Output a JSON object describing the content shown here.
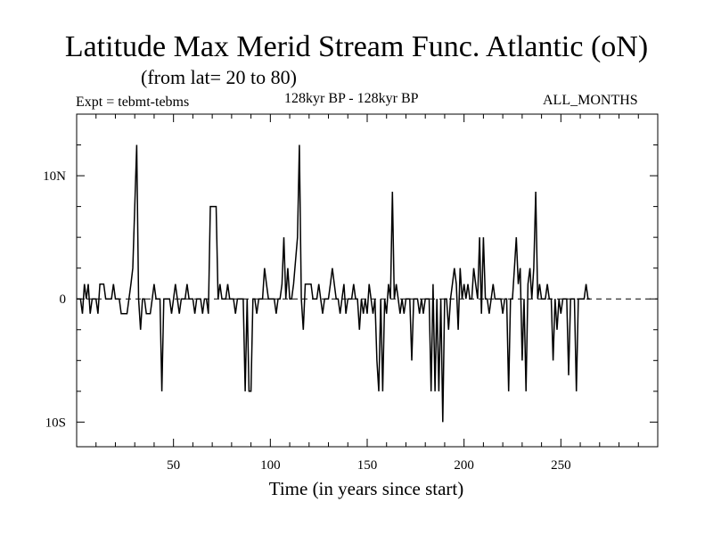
{
  "title": "Latitude Max Merid Stream Func. Atlantic (oN)",
  "subtitle": "(from lat= 20 to 80)",
  "experiment_label": "Expt = tebmt-tebms",
  "period_label": "128kyr BP - 128kyr BP",
  "months_label": "ALL_MONTHS",
  "chart_data": {
    "type": "line",
    "title": "Latitude Max Merid Stream Func. Atlantic (oN)",
    "subtitle": "(from lat= 20 to 80)",
    "xlabel": "Time (in years since start)",
    "ylabel": "",
    "xlim": [
      0,
      300
    ],
    "ylim": [
      -12,
      15
    ],
    "x_ticks": [
      50,
      100,
      150,
      200,
      250
    ],
    "x_tick_labels": [
      "50",
      "100",
      "150",
      "200",
      "250"
    ],
    "y_ticks": [
      10,
      0,
      -10
    ],
    "y_tick_labels": [
      "10N",
      "0",
      "10S"
    ],
    "zero_line": "dashed",
    "series": [
      {
        "name": "tebmt-tebms",
        "color": "#000000",
        "points": [
          [
            0,
            0
          ],
          [
            2,
            0
          ],
          [
            3,
            -1.2
          ],
          [
            4,
            1.2
          ],
          [
            5,
            0
          ],
          [
            6,
            1.2
          ],
          [
            7,
            -1.2
          ],
          [
            8,
            0
          ],
          [
            10,
            0
          ],
          [
            11,
            -1.2
          ],
          [
            12,
            1.2
          ],
          [
            14,
            1.2
          ],
          [
            15,
            0
          ],
          [
            18,
            0
          ],
          [
            19,
            1.2
          ],
          [
            20,
            0
          ],
          [
            22,
            0
          ],
          [
            23,
            -1.2
          ],
          [
            26,
            -1.2
          ],
          [
            27,
            0
          ],
          [
            28,
            1.2
          ],
          [
            29,
            2.5
          ],
          [
            30,
            7.5
          ],
          [
            31,
            12.5
          ],
          [
            32,
            0
          ],
          [
            33,
            -2.5
          ],
          [
            34,
            0
          ],
          [
            35,
            0
          ],
          [
            36,
            -1.2
          ],
          [
            38,
            -1.2
          ],
          [
            39,
            0
          ],
          [
            40,
            1.2
          ],
          [
            41,
            0
          ],
          [
            43,
            0
          ],
          [
            44,
            -7.5
          ],
          [
            45,
            0
          ],
          [
            48,
            0
          ],
          [
            49,
            -1.2
          ],
          [
            50,
            0
          ],
          [
            51,
            1.2
          ],
          [
            52,
            0
          ],
          [
            53,
            -1.2
          ],
          [
            54,
            0
          ],
          [
            56,
            0
          ],
          [
            57,
            1.2
          ],
          [
            58,
            0
          ],
          [
            60,
            0
          ],
          [
            61,
            -1.2
          ],
          [
            62,
            0
          ],
          [
            64,
            0
          ],
          [
            65,
            -1.2
          ],
          [
            66,
            0
          ],
          [
            67,
            0
          ],
          [
            68,
            -1.2
          ],
          [
            69,
            7.5
          ],
          [
            72,
            7.5
          ],
          [
            73,
            0
          ],
          [
            74,
            1.2
          ],
          [
            75,
            0
          ],
          [
            77,
            0
          ],
          [
            78,
            1.2
          ],
          [
            79,
            0
          ],
          [
            81,
            0
          ],
          [
            82,
            -1.2
          ],
          [
            83,
            0
          ],
          [
            86,
            0
          ],
          [
            87,
            -7.5
          ],
          [
            88,
            0
          ],
          [
            89,
            -7.5
          ],
          [
            90,
            -7.5
          ],
          [
            91,
            0
          ],
          [
            92,
            0
          ],
          [
            93,
            -1.2
          ],
          [
            94,
            0
          ],
          [
            96,
            0
          ],
          [
            97,
            2.5
          ],
          [
            98,
            1.2
          ],
          [
            99,
            0
          ],
          [
            102,
            0
          ],
          [
            103,
            -1.2
          ],
          [
            104,
            0
          ],
          [
            105,
            0
          ],
          [
            106,
            1.2
          ],
          [
            107,
            5
          ],
          [
            108,
            0
          ],
          [
            109,
            2.5
          ],
          [
            110,
            0
          ],
          [
            111,
            0
          ],
          [
            112,
            1.2
          ],
          [
            114,
            5
          ],
          [
            115,
            12.5
          ],
          [
            116,
            0
          ],
          [
            117,
            -2.5
          ],
          [
            118,
            1.2
          ],
          [
            121,
            1.2
          ],
          [
            122,
            0
          ],
          [
            124,
            0
          ],
          [
            125,
            1.2
          ],
          [
            126,
            0
          ],
          [
            127,
            -1.2
          ],
          [
            128,
            0
          ],
          [
            130,
            0
          ],
          [
            131,
            1.2
          ],
          [
            132,
            2.5
          ],
          [
            133,
            1.2
          ],
          [
            134,
            0
          ],
          [
            135,
            0
          ],
          [
            136,
            -1.2
          ],
          [
            137,
            0
          ],
          [
            138,
            1.2
          ],
          [
            139,
            -1.2
          ],
          [
            140,
            0
          ],
          [
            142,
            0
          ],
          [
            143,
            1.2
          ],
          [
            144,
            0
          ],
          [
            145,
            0
          ],
          [
            146,
            -2.5
          ],
          [
            147,
            0
          ],
          [
            148,
            -1.2
          ],
          [
            149,
            0
          ],
          [
            150,
            -1.2
          ],
          [
            151,
            1.2
          ],
          [
            152,
            0
          ],
          [
            153,
            -1.2
          ],
          [
            154,
            0
          ],
          [
            155,
            -5
          ],
          [
            156,
            -7.5
          ],
          [
            157,
            0
          ],
          [
            158,
            -7.5
          ],
          [
            159,
            0
          ],
          [
            160,
            -1.2
          ],
          [
            161,
            1.2
          ],
          [
            162,
            0
          ],
          [
            163,
            8.7
          ],
          [
            164,
            0
          ],
          [
            165,
            1.2
          ],
          [
            166,
            0
          ],
          [
            167,
            -1.2
          ],
          [
            168,
            0
          ],
          [
            169,
            -1.2
          ],
          [
            170,
            0
          ],
          [
            172,
            0
          ],
          [
            173,
            -5
          ],
          [
            174,
            0
          ],
          [
            176,
            0
          ],
          [
            177,
            -1.2
          ],
          [
            178,
            0
          ],
          [
            179,
            -1.2
          ],
          [
            180,
            0
          ],
          [
            182,
            0
          ],
          [
            183,
            -7.5
          ],
          [
            184,
            1.2
          ],
          [
            185,
            -7.5
          ],
          [
            186,
            0
          ],
          [
            187,
            -7.5
          ],
          [
            188,
            0
          ],
          [
            189,
            -10
          ],
          [
            190,
            0
          ],
          [
            191,
            0
          ],
          [
            192,
            -2.5
          ],
          [
            193,
            0
          ],
          [
            194,
            1.2
          ],
          [
            195,
            2.5
          ],
          [
            196,
            1.2
          ],
          [
            197,
            -2.5
          ],
          [
            198,
            2.5
          ],
          [
            199,
            0
          ],
          [
            200,
            1.2
          ],
          [
            201,
            0
          ],
          [
            202,
            1.2
          ],
          [
            203,
            0
          ],
          [
            204,
            0
          ],
          [
            205,
            2.5
          ],
          [
            206,
            1.2
          ],
          [
            207,
            0
          ],
          [
            208,
            5
          ],
          [
            209,
            -1.2
          ],
          [
            210,
            5
          ],
          [
            211,
            0
          ],
          [
            212,
            0
          ],
          [
            213,
            -1.2
          ],
          [
            214,
            0
          ],
          [
            215,
            1.2
          ],
          [
            216,
            0
          ],
          [
            219,
            0
          ],
          [
            220,
            -1.2
          ],
          [
            221,
            0
          ],
          [
            222,
            0
          ],
          [
            223,
            -7.5
          ],
          [
            224,
            0
          ],
          [
            225,
            0
          ],
          [
            226,
            2.5
          ],
          [
            227,
            5
          ],
          [
            228,
            1.2
          ],
          [
            229,
            2.5
          ],
          [
            230,
            -5
          ],
          [
            231,
            0
          ],
          [
            232,
            -7.5
          ],
          [
            233,
            1.2
          ],
          [
            234,
            2.5
          ],
          [
            235,
            0
          ],
          [
            236,
            2.5
          ],
          [
            237,
            8.7
          ],
          [
            238,
            0
          ],
          [
            239,
            1.2
          ],
          [
            240,
            0
          ],
          [
            242,
            0
          ],
          [
            243,
            1.2
          ],
          [
            244,
            0
          ],
          [
            245,
            0
          ],
          [
            246,
            -5
          ],
          [
            247,
            0
          ],
          [
            248,
            -2.5
          ],
          [
            249,
            0
          ],
          [
            250,
            -1.2
          ],
          [
            251,
            0
          ],
          [
            253,
            0
          ],
          [
            254,
            -6.2
          ],
          [
            255,
            0
          ],
          [
            257,
            0
          ],
          [
            258,
            -7.5
          ],
          [
            259,
            0
          ],
          [
            262,
            0
          ],
          [
            263,
            1.2
          ],
          [
            264,
            0
          ],
          [
            265,
            0
          ]
        ]
      }
    ]
  }
}
